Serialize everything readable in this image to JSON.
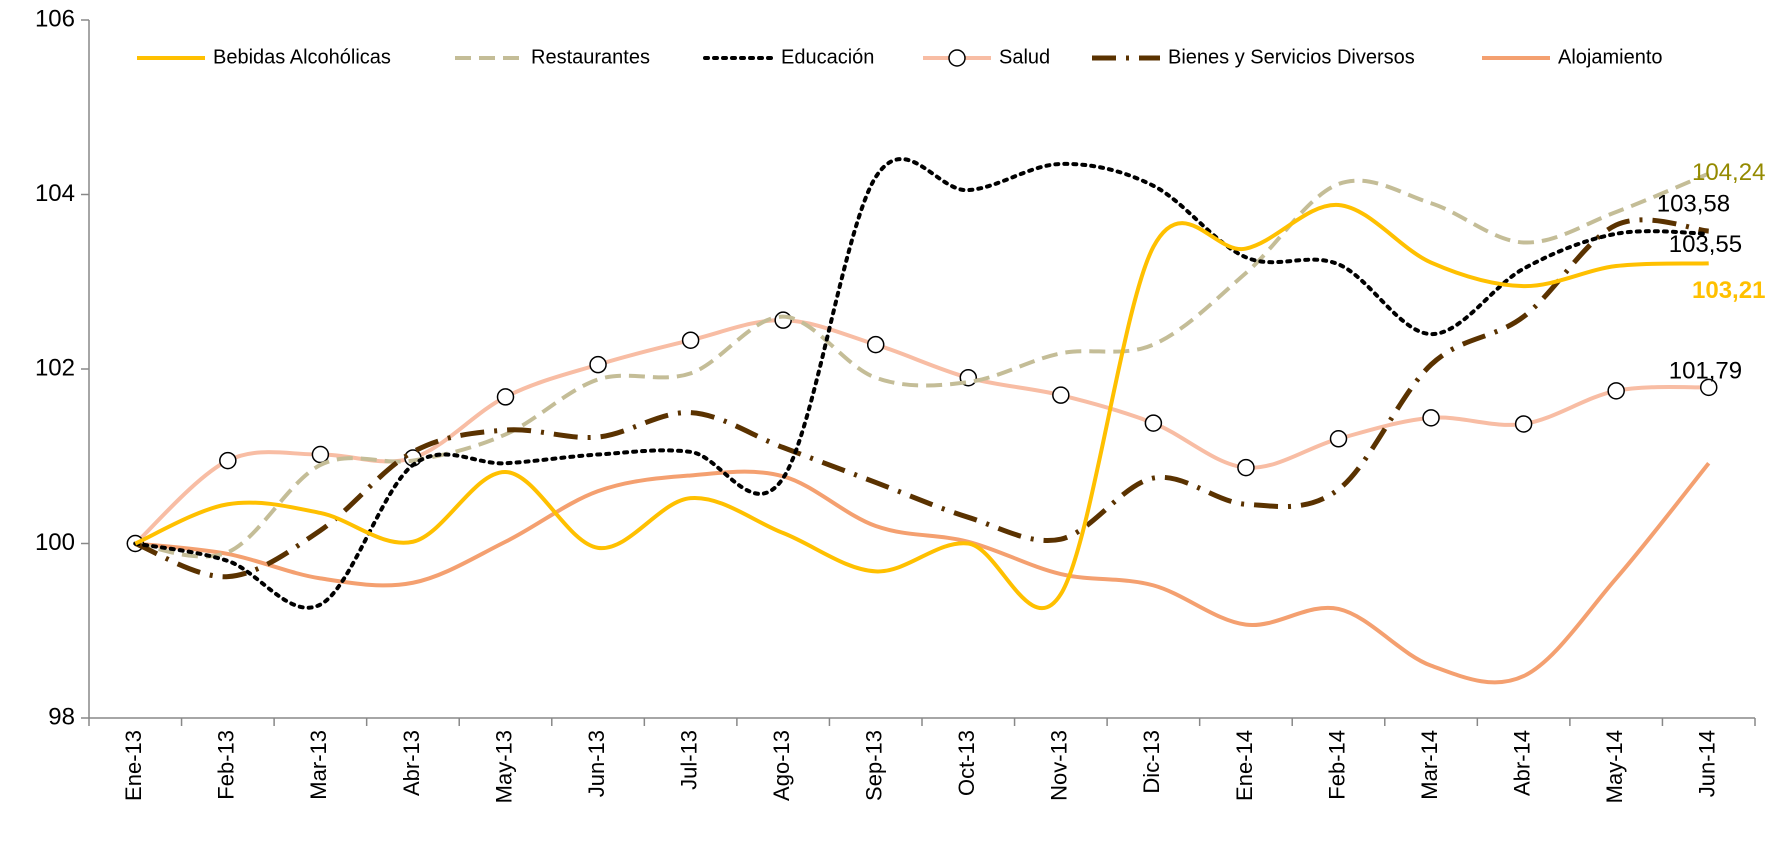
{
  "chart_data": {
    "type": "line",
    "categories": [
      "Ene-13",
      "Feb-13",
      "Mar-13",
      "Abr-13",
      "May-13",
      "Jun-13",
      "Jul-13",
      "Ago-13",
      "Sep-13",
      "Oct-13",
      "Nov-13",
      "Dic-13",
      "Ene-14",
      "Feb-14",
      "Mar-14",
      "Abr-14",
      "May-14",
      "Jun-14"
    ],
    "ylim": [
      98,
      106
    ],
    "yticks": [
      98,
      100,
      102,
      104,
      106
    ],
    "grid": false,
    "legend": "top",
    "series": [
      {
        "name": "Bebidas Alcohólicas",
        "color": "#ffc000",
        "dash": "solid",
        "label_color": "#ffc000",
        "values": [
          100,
          100.45,
          100.35,
          100.02,
          100.82,
          99.95,
          100.52,
          100.12,
          99.68,
          100.0,
          99.42,
          103.4,
          103.38,
          103.88,
          103.22,
          102.95,
          103.18,
          103.21
        ],
        "value_labels": [
          null,
          null,
          null,
          null,
          null,
          null,
          null,
          null,
          null,
          null,
          null,
          null,
          null,
          null,
          null,
          null,
          null,
          "103,21"
        ]
      },
      {
        "name": "Restaurantes",
        "color": "#c4bd97",
        "dash": "dashed",
        "label_color": "#948a00",
        "values": [
          100,
          99.9,
          100.9,
          100.95,
          101.25,
          101.88,
          101.95,
          102.6,
          101.9,
          101.85,
          102.18,
          102.28,
          103.1,
          104.12,
          103.9,
          103.45,
          103.8,
          104.24
        ],
        "value_labels": [
          null,
          null,
          null,
          null,
          null,
          null,
          null,
          null,
          null,
          null,
          null,
          null,
          null,
          null,
          null,
          null,
          null,
          "104,24"
        ]
      },
      {
        "name": "Educación",
        "color": "#000000",
        "dash": "dotted",
        "label_color": "#000000",
        "values": [
          100,
          99.8,
          99.3,
          100.9,
          100.92,
          101.02,
          101.05,
          100.75,
          104.2,
          104.05,
          104.35,
          104.1,
          103.28,
          103.2,
          102.4,
          103.15,
          103.55,
          103.55
        ],
        "value_labels": [
          null,
          null,
          null,
          null,
          null,
          null,
          null,
          null,
          null,
          null,
          null,
          null,
          null,
          null,
          null,
          null,
          null,
          "103,55"
        ]
      },
      {
        "name": "Salud",
        "color": "#f8bda4",
        "dash": "solid",
        "marker": "circle",
        "label_color": "#000000",
        "values": [
          100,
          100.95,
          101.02,
          100.98,
          101.68,
          102.05,
          102.33,
          102.56,
          102.28,
          101.9,
          101.7,
          101.38,
          100.87,
          101.2,
          101.44,
          101.37,
          101.75,
          101.79
        ],
        "value_labels": [
          null,
          null,
          null,
          null,
          null,
          null,
          null,
          null,
          null,
          null,
          null,
          null,
          null,
          null,
          null,
          null,
          null,
          "101,79"
        ]
      },
      {
        "name": "Bienes y Servicios Diversos",
        "color": "#5a3200",
        "dash": "dashdot",
        "label_color": "#000000",
        "values": [
          100,
          99.62,
          100.15,
          101.05,
          101.3,
          101.22,
          101.5,
          101.1,
          100.7,
          100.3,
          100.05,
          100.75,
          100.45,
          100.62,
          102.05,
          102.6,
          103.65,
          103.58
        ],
        "value_labels": [
          null,
          null,
          null,
          null,
          null,
          null,
          null,
          null,
          null,
          null,
          null,
          null,
          null,
          null,
          null,
          null,
          null,
          "103,58"
        ]
      },
      {
        "name": "Alojamiento",
        "color": "#f4a070",
        "dash": "solid",
        "label_color": "#000000",
        "values": [
          100,
          99.88,
          99.6,
          99.55,
          100.02,
          100.6,
          100.78,
          100.77,
          100.2,
          100.02,
          99.65,
          99.52,
          99.07,
          99.25,
          98.6,
          98.48,
          99.6,
          100.92
        ]
      }
    ]
  }
}
